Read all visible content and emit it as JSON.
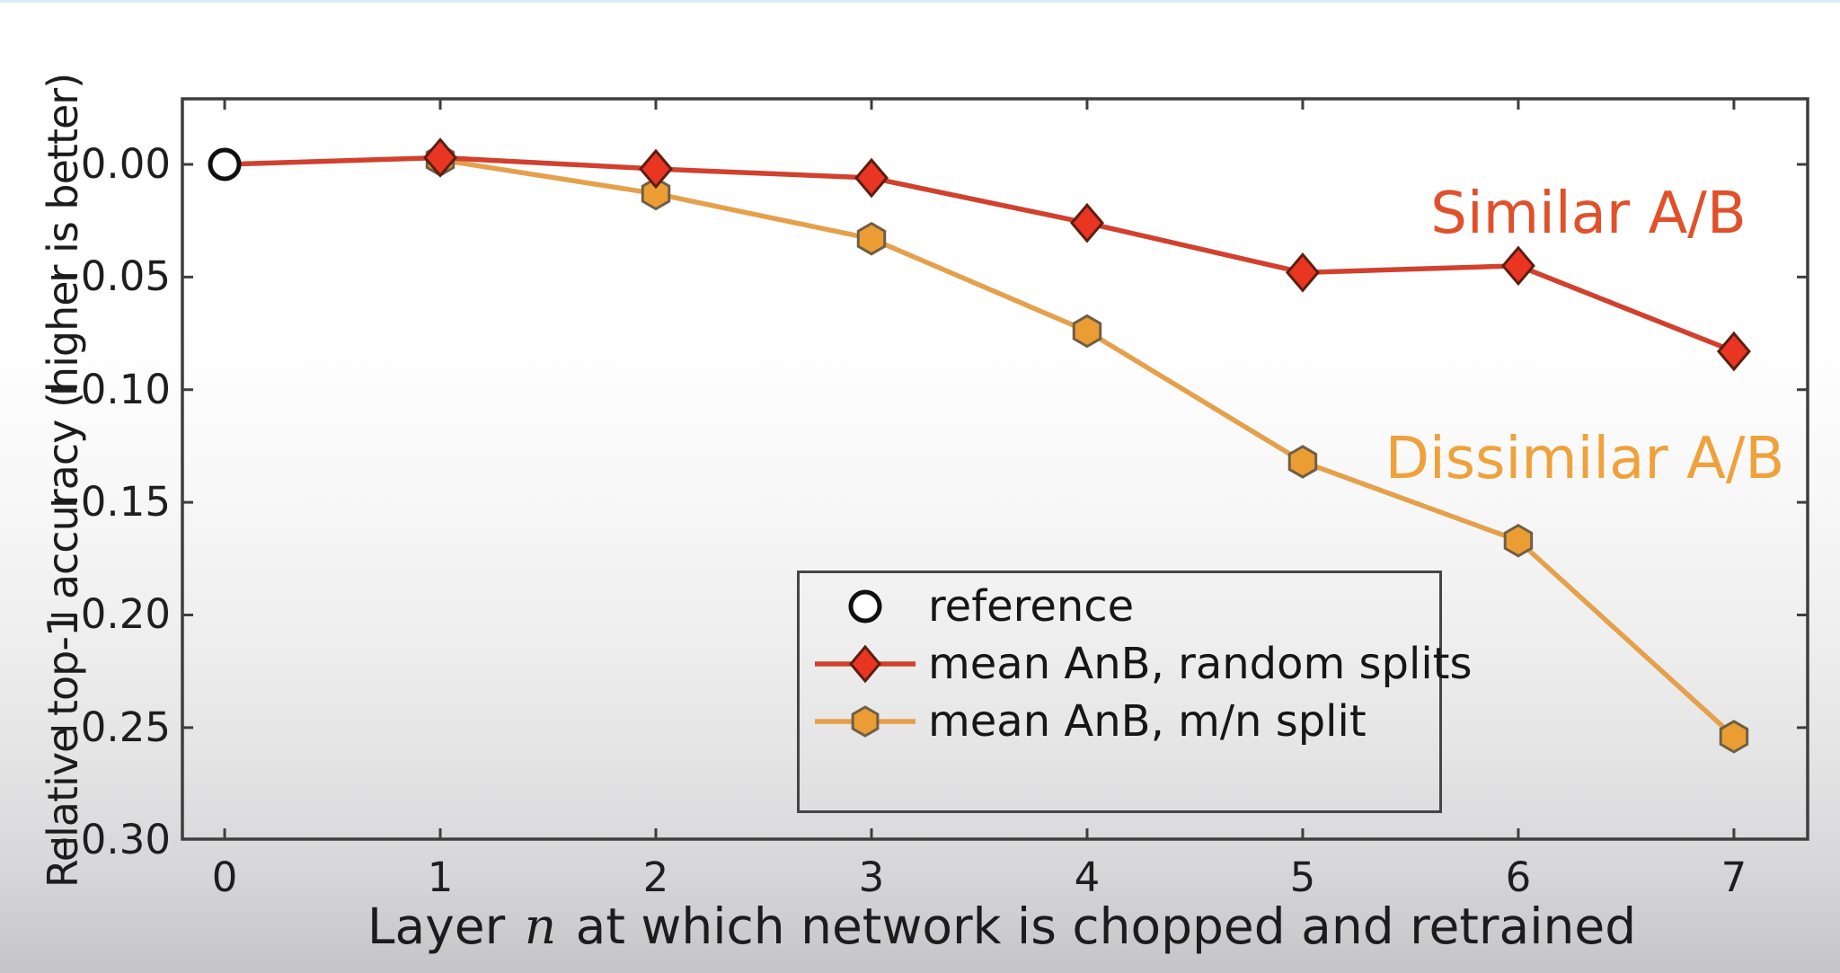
{
  "chart_data": {
    "type": "line",
    "title": "",
    "xlabel_prefix": "Layer",
    "xlabel_var": "n",
    "xlabel_suffix": "at which network is chopped and retrained",
    "ylabel": "Relative top-1 accuracy (higher is better)",
    "xlim": [
      -0.196,
      7.342
    ],
    "ylim": [
      -0.2995,
      0.0291
    ],
    "grid": false,
    "axis_color": "#3e3e3e",
    "text_color": "#1e1e1e",
    "x_ticks": [
      0,
      1,
      2,
      3,
      4,
      5,
      6,
      7
    ],
    "x_tick_labels": [
      "0",
      "1",
      "2",
      "3",
      "4",
      "5",
      "6",
      "7"
    ],
    "y_ticks": [
      0,
      -0.05,
      -0.1,
      -0.15,
      -0.2,
      -0.25,
      -0.3
    ],
    "y_tick_labels": [
      "0.00",
      "−0.05",
      "−0.10",
      "−0.15",
      "−0.20",
      "−0.25",
      "−0.30"
    ],
    "series": [
      {
        "name": "reference",
        "marker": "circle",
        "line": false,
        "line_color": "#0f0f0f",
        "fill": "#ffffff",
        "edge": "#0f0f0f",
        "x": [
          0
        ],
        "y": [
          0.0
        ]
      },
      {
        "name": "mean AnB, random splits",
        "marker": "diamond",
        "line": true,
        "line_color": "#d2402e",
        "fill": "#ea3523",
        "edge": "#5c1e11",
        "marker_from_index": 1,
        "x": [
          0,
          1,
          2,
          3,
          4,
          5,
          6,
          7
        ],
        "y": [
          0.0,
          0.003,
          -0.002,
          -0.006,
          -0.026,
          -0.048,
          -0.045,
          -0.083
        ]
      },
      {
        "name": "mean AnB, m/n split",
        "marker": "hexagon",
        "line": true,
        "line_color": "#e5a04c",
        "fill": "#eb9d33",
        "edge": "#6e5f45",
        "marker_from_index": 0,
        "x": [
          1,
          2,
          3,
          4,
          5,
          6,
          7
        ],
        "y": [
          0.002,
          -0.013,
          -0.033,
          -0.074,
          -0.132,
          -0.167,
          -0.254
        ]
      }
    ],
    "legend": {
      "position": "lower center",
      "entries": [
        {
          "label": "reference",
          "marker": "circle"
        },
        {
          "label": "mean AnB, random splits",
          "marker": "diamond"
        },
        {
          "label": "mean AnB, m/n split",
          "marker": "hexagon"
        }
      ]
    },
    "annotations": [
      {
        "text": "Similar A/B",
        "color": "#e0512b"
      },
      {
        "text": "Dissimilar A/B",
        "color": "#efa23c"
      }
    ]
  }
}
